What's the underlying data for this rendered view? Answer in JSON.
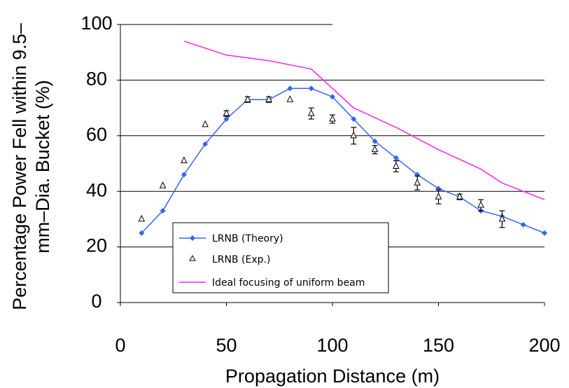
{
  "chart_data": {
    "type": "line",
    "title": "",
    "xlabel": "Propagation Distance (m)",
    "ylabel_lines": [
      "Percentage Power Fell within 9.5–",
      "mm–Dia. Bucket (%)"
    ],
    "xlim": [
      0,
      200
    ],
    "ylim": [
      0,
      100
    ],
    "xticks": [
      0,
      50,
      100,
      150,
      200
    ],
    "yticks": [
      0,
      20,
      40,
      60,
      80,
      100
    ],
    "hgrid": [
      20,
      40,
      60,
      80
    ],
    "legend_position": "lower-left",
    "colors": {
      "theory": "#3366ee",
      "experiment": "#000000",
      "ideal": "#ff22ee",
      "grid": "#000000"
    },
    "series": [
      {
        "name": "LRNB (Theory)",
        "style": "line-diamond",
        "x": [
          10,
          20,
          30,
          40,
          50,
          60,
          70,
          80,
          90,
          100,
          110,
          120,
          130,
          140,
          150,
          160,
          170,
          180,
          190,
          200
        ],
        "y": [
          25,
          33,
          46,
          57,
          66,
          73,
          73,
          77,
          77,
          74,
          66,
          58,
          52,
          46,
          41,
          38,
          33,
          31,
          28,
          25
        ]
      },
      {
        "name": "LRNB (Exp.)",
        "style": "triangle-errorbar",
        "x": [
          10,
          20,
          30,
          40,
          50,
          60,
          70,
          80,
          90,
          100,
          110,
          120,
          130,
          140,
          150,
          160,
          170,
          180
        ],
        "y": [
          30,
          42,
          51,
          64,
          68,
          73,
          73,
          73,
          68,
          66,
          60,
          55,
          49,
          43,
          38,
          38,
          35,
          30
        ],
        "err": [
          0,
          0,
          0,
          0,
          1,
          1,
          1,
          0,
          2,
          1.5,
          3,
          1.5,
          2,
          2.5,
          2.5,
          1,
          2,
          3
        ]
      },
      {
        "name": "Ideal focusing of uniform beam",
        "style": "line",
        "x": [
          30,
          50,
          70,
          90,
          110,
          130,
          150,
          170,
          180,
          200
        ],
        "y": [
          94,
          89,
          87,
          84,
          70,
          63,
          55,
          48,
          43,
          37
        ]
      }
    ]
  }
}
